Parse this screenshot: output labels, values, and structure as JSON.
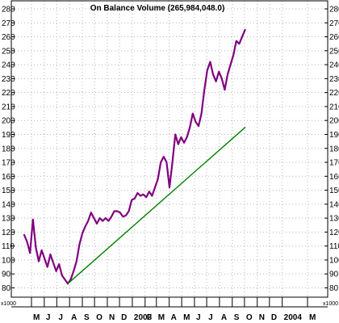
{
  "chart_data": {
    "type": "line",
    "title": "On Balance Volume (265,984,048.0)",
    "multiplier_label": "x1000",
    "ylim": [
      75,
      285
    ],
    "yticks": [
      80,
      90,
      100,
      110,
      120,
      130,
      140,
      150,
      160,
      170,
      180,
      190,
      200,
      210,
      220,
      230,
      240,
      250,
      260,
      270,
      280
    ],
    "months": [
      {
        "label": "M",
        "x": 0
      },
      {
        "label": "J",
        "x": 4.4
      },
      {
        "label": "J",
        "x": 8.7
      },
      {
        "label": "A",
        "x": 13.1
      },
      {
        "label": "S",
        "x": 17.5
      },
      {
        "label": "O",
        "x": 21.7
      },
      {
        "label": "N",
        "x": 26.1
      },
      {
        "label": "D",
        "x": 30.3
      },
      {
        "label": "2003",
        "x": 34.7
      },
      {
        "label": "F",
        "x": 39.1
      },
      {
        "label": "M",
        "x": 43.0
      },
      {
        "label": "A",
        "x": 47.4
      },
      {
        "label": "M",
        "x": 51.7
      },
      {
        "label": "J",
        "x": 56.1
      },
      {
        "label": "J",
        "x": 60.3
      },
      {
        "label": "A",
        "x": 64.7
      },
      {
        "label": "S",
        "x": 69.1
      },
      {
        "label": "O",
        "x": 73.3
      },
      {
        "label": "N",
        "x": 77.7
      },
      {
        "label": "D",
        "x": 81.9
      },
      {
        "label": "2004",
        "x": 86.3
      },
      {
        "label": "M",
        "x": 95.0
      }
    ],
    "xlim": [
      -2.5,
      97.5
    ],
    "series": [
      {
        "name": "",
        "color": "#800080",
        "points": [
          [
            -2.5,
            118
          ],
          [
            -1.5,
            113
          ],
          [
            -0.5,
            105
          ],
          [
            0.5,
            129
          ],
          [
            1.5,
            109
          ],
          [
            2.5,
            99
          ],
          [
            3.5,
            107
          ],
          [
            4.5,
            101
          ],
          [
            5.5,
            95
          ],
          [
            6.5,
            104
          ],
          [
            7.5,
            98
          ],
          [
            8.5,
            92
          ],
          [
            9.5,
            97
          ],
          [
            10.5,
            89
          ],
          [
            11.5,
            86
          ],
          [
            12.5,
            83
          ],
          [
            13.5,
            86
          ],
          [
            14.5,
            92
          ],
          [
            15.5,
            99
          ],
          [
            16.5,
            111
          ],
          [
            17.5,
            119
          ],
          [
            18.5,
            124
          ],
          [
            19.5,
            128
          ],
          [
            20.5,
            134
          ],
          [
            21.5,
            130
          ],
          [
            22.5,
            126
          ],
          [
            23.5,
            130
          ],
          [
            24.5,
            128
          ],
          [
            25.5,
            130
          ],
          [
            26.5,
            128
          ],
          [
            27.5,
            131
          ],
          [
            28.5,
            135
          ],
          [
            29.5,
            135
          ],
          [
            30.5,
            134
          ],
          [
            31.5,
            131
          ],
          [
            32.5,
            132
          ],
          [
            33.5,
            135
          ],
          [
            34.5,
            143
          ],
          [
            35.5,
            144
          ],
          [
            36.5,
            148
          ],
          [
            37.5,
            146
          ],
          [
            38.5,
            147
          ],
          [
            39.5,
            145
          ],
          [
            40.5,
            149
          ],
          [
            41.5,
            146
          ],
          [
            42.5,
            152
          ],
          [
            43.5,
            158
          ],
          [
            44.5,
            170
          ],
          [
            45.5,
            174
          ],
          [
            46.5,
            170
          ],
          [
            47.5,
            152
          ],
          [
            48.5,
            170
          ],
          [
            49.5,
            190
          ],
          [
            50.5,
            183
          ],
          [
            51.5,
            188
          ],
          [
            52.5,
            184
          ],
          [
            53.5,
            188
          ],
          [
            54.5,
            195
          ],
          [
            55.5,
            205
          ],
          [
            56.5,
            199
          ],
          [
            57.5,
            196
          ],
          [
            58.5,
            205
          ],
          [
            59.5,
            222
          ],
          [
            60.5,
            236
          ],
          [
            61.5,
            242
          ],
          [
            62.5,
            233
          ],
          [
            63.5,
            228
          ],
          [
            64.5,
            235
          ],
          [
            65.5,
            230
          ],
          [
            66.5,
            222
          ],
          [
            67.5,
            233
          ],
          [
            68.5,
            240
          ],
          [
            69.5,
            247
          ],
          [
            70.5,
            257
          ],
          [
            71.5,
            255
          ],
          [
            72.5,
            260
          ],
          [
            73.5,
            265
          ]
        ]
      },
      {
        "name": "",
        "color": "#008000",
        "points": [
          [
            12.5,
            83
          ],
          [
            73.5,
            195
          ]
        ]
      }
    ],
    "grid": true,
    "y_axis_both_sides": true
  }
}
